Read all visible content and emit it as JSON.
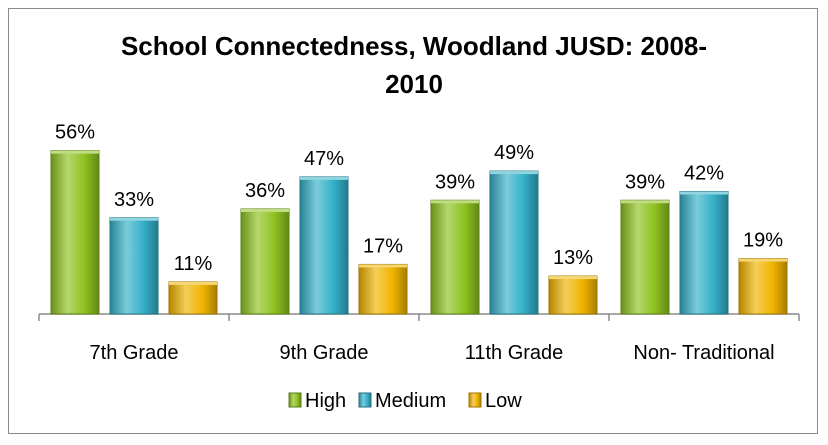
{
  "chart_data": {
    "type": "bar",
    "title_lines": [
      "School Connectedness, Woodland JUSD: 2008-",
      "2010"
    ],
    "categories": [
      "7th Grade",
      "9th Grade",
      "11th Grade",
      "Non- Traditional"
    ],
    "series": [
      {
        "name": "High",
        "values": [
          56,
          36,
          39,
          39
        ],
        "labels": [
          "56%",
          "36%",
          "39%",
          "39%"
        ],
        "color": "#8dc21f"
      },
      {
        "name": "Medium",
        "values": [
          33,
          47,
          49,
          42
        ],
        "labels": [
          "33%",
          "47%",
          "49%",
          "42%"
        ],
        "color": "#34b0c8"
      },
      {
        "name": "Low",
        "values": [
          11,
          17,
          13,
          19
        ],
        "labels": [
          "11%",
          "17%",
          "13%",
          "19%"
        ],
        "color": "#f0b400"
      }
    ],
    "ylim": [
      0,
      60
    ],
    "grid": false,
    "legend_position": "bottom"
  }
}
